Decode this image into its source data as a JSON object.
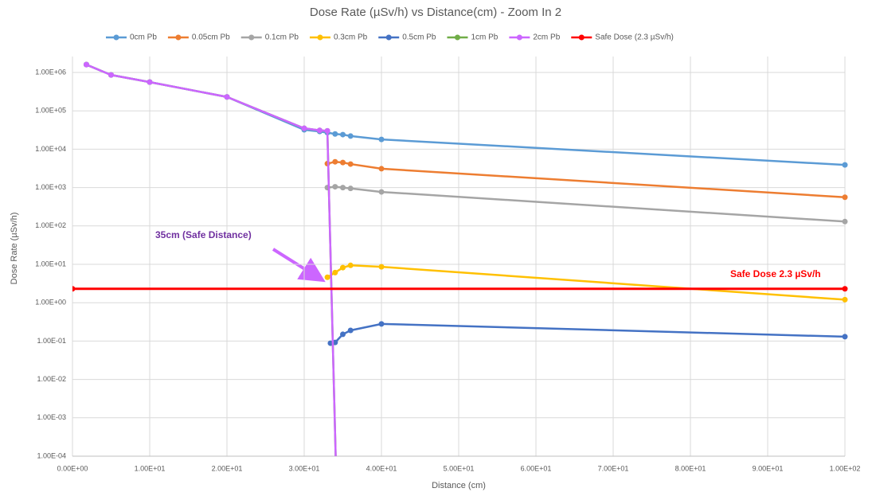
{
  "chart_data": {
    "type": "line",
    "title": "Dose Rate (µSv/h) vs Distance(cm) - Zoom In 2",
    "x_label": "Distance (cm)",
    "y_label": "Dose Rate (µSv/h)",
    "log_y": true,
    "grid": true,
    "legend": "top",
    "xlim": [
      0,
      100
    ],
    "xticks": [
      {
        "value": 0,
        "label": "0.00E+00"
      },
      {
        "value": 10,
        "label": "1.00E+01"
      },
      {
        "value": 20,
        "label": "2.00E+01"
      },
      {
        "value": 30,
        "label": "3.00E+01"
      },
      {
        "value": 40,
        "label": "4.00E+01"
      },
      {
        "value": 50,
        "label": "5.00E+01"
      },
      {
        "value": 60,
        "label": "6.00E+01"
      },
      {
        "value": 70,
        "label": "7.00E+01"
      },
      {
        "value": 80,
        "label": "8.00E+01"
      },
      {
        "value": 90,
        "label": "9.00E+01"
      },
      {
        "value": 100,
        "label": "1.00E+02"
      }
    ],
    "ylim": [
      0.0001,
      1000000
    ],
    "yticks": [
      {
        "value": 0.0001,
        "label": "1.00E-04"
      },
      {
        "value": 0.001,
        "label": "1.00E-03"
      },
      {
        "value": 0.01,
        "label": "1.00E-02"
      },
      {
        "value": 0.1,
        "label": "1.00E-01"
      },
      {
        "value": 1,
        "label": "1.00E+00"
      },
      {
        "value": 10,
        "label": "1.00E+01"
      },
      {
        "value": 100,
        "label": "1.00E+02"
      },
      {
        "value": 1000,
        "label": "1.00E+03"
      },
      {
        "value": 10000,
        "label": "1.00E+04"
      },
      {
        "value": 100000,
        "label": "1.00E+05"
      },
      {
        "value": 1000000,
        "label": "1.00E+06"
      }
    ],
    "series": [
      {
        "name": "0cm Pb",
        "color": "#5b9bd5",
        "x": [
          1.8,
          5,
          10,
          20,
          30,
          32,
          33,
          34,
          35,
          36,
          40,
          100
        ],
        "values": [
          1600000,
          860000,
          560000,
          230000,
          32000,
          29000,
          27000,
          25000,
          24000,
          22000,
          18000,
          3900
        ]
      },
      {
        "name": "0.05cm Pb",
        "color": "#ed7d31",
        "x": [
          33,
          34,
          35,
          36,
          40,
          100
        ],
        "values": [
          4200,
          4700,
          4500,
          4100,
          3100,
          560
        ]
      },
      {
        "name": "0.1cm Pb",
        "color": "#a5a5a5",
        "x": [
          33,
          34,
          35,
          36,
          40,
          100
        ],
        "values": [
          1000,
          1050,
          1000,
          950,
          770,
          130
        ]
      },
      {
        "name": "0.3cm Pb",
        "color": "#ffc000",
        "x": [
          33,
          34,
          35,
          36,
          40,
          100
        ],
        "values": [
          4.6,
          6.1,
          8.2,
          9.4,
          8.6,
          1.2
        ]
      },
      {
        "name": "0.5cm Pb",
        "color": "#4472c4",
        "x": [
          33.4,
          34,
          35,
          36,
          40,
          100
        ],
        "values": [
          0.088,
          0.092,
          0.15,
          0.19,
          0.28,
          0.13
        ]
      },
      {
        "name": "1cm Pb",
        "color": "#70ad47",
        "x": [
          1.8,
          5,
          10,
          20,
          30,
          32,
          33,
          34.2
        ],
        "values": [
          1600000,
          860000,
          560000,
          230000,
          35000,
          31000,
          30000,
          1e-05
        ]
      },
      {
        "name": "2cm Pb",
        "color": "#cc66ff",
        "x": [
          1.8,
          5,
          10,
          20,
          30,
          32,
          33,
          34.2
        ],
        "values": [
          1600000,
          860000,
          560000,
          230000,
          35000,
          31000,
          30000,
          1e-05
        ]
      },
      {
        "name": "Safe Dose (2.3 µSv/h)",
        "color": "#ff0000",
        "x": [
          0,
          100
        ],
        "values": [
          2.3,
          2.3
        ]
      }
    ],
    "annotations": [
      {
        "text": "35cm (Safe Distance)",
        "color": "#7030a0"
      },
      {
        "text": "Safe Dose 2.3 µSv/h",
        "color": "#ff0000"
      }
    ]
  }
}
